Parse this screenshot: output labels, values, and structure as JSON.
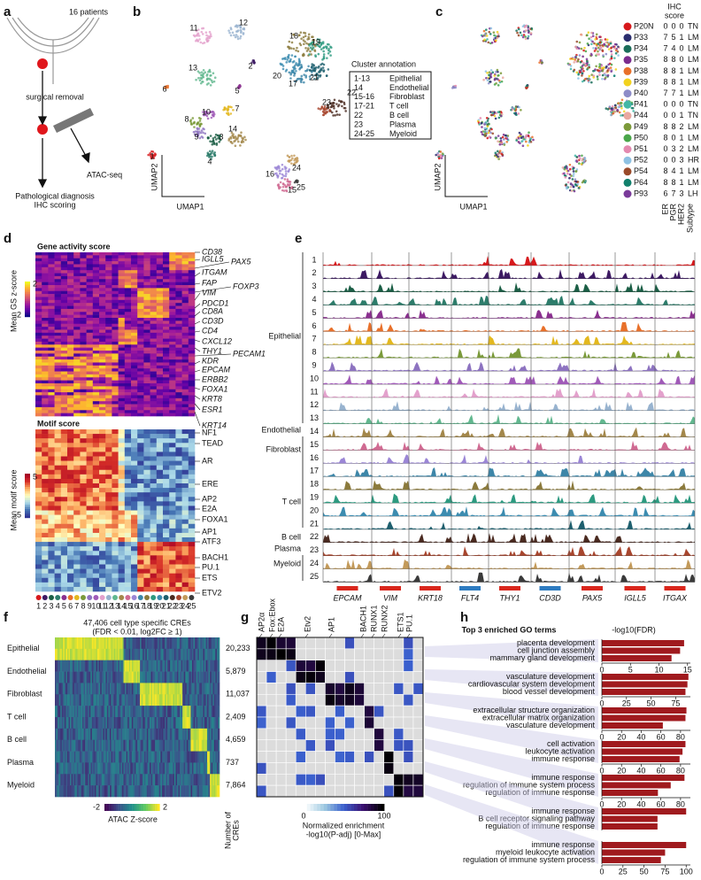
{
  "panels": {
    "a": {
      "label": "a",
      "patients": "16 patients",
      "surgery": "surgical removal",
      "assay": "ATAC-seq",
      "outcome": [
        "Pathological diagnosis",
        "IHC scoring"
      ]
    },
    "b": {
      "label": "b",
      "x_axis": "UMAP1",
      "y_axis": "UMAP2",
      "clusters": [
        1,
        2,
        3,
        4,
        5,
        6,
        7,
        8,
        9,
        10,
        11,
        12,
        13,
        14,
        15,
        16,
        17,
        18,
        19,
        20,
        21,
        22,
        23,
        24,
        25
      ],
      "cluster_colors": [
        "#d7191c",
        "#3d1a63",
        "#1b5e45",
        "#2c7c6a",
        "#8a2f8f",
        "#e8702a",
        "#e3b81f",
        "#7a9a3a",
        "#8d73c0",
        "#a05bb8",
        "#e3a1cc",
        "#98b3cf",
        "#62b88f",
        "#a3874a",
        "#d06a92",
        "#9b86d6",
        "#3d86a8",
        "#8b7a3c",
        "#2d9a80",
        "#3c8cb0",
        "#1e5f6e",
        "#4a2a20",
        "#a8462e",
        "#c39a5a",
        "#3a3a3a"
      ],
      "annotation": {
        "title": "Cluster annotation",
        "rows": [
          [
            "1-13",
            "Epithelial"
          ],
          [
            "14",
            "Endothelial"
          ],
          [
            "15-16",
            "Fibroblast"
          ],
          [
            "17-21",
            "T cell"
          ],
          [
            "22",
            "B cell"
          ],
          [
            "23",
            "Plasma"
          ],
          [
            "24-25",
            "Myeloid"
          ]
        ]
      }
    },
    "c": {
      "label": "c",
      "x_axis": "UMAP1",
      "y_axis": "UMAP2",
      "ihc_title": [
        "IHC",
        "score"
      ],
      "columns": [
        "ER",
        "PGR",
        "HER2",
        "Subtype"
      ],
      "patients": [
        {
          "name": "P20N",
          "color": "#d7191c",
          "er": 0,
          "pgr": 0,
          "her2": 0,
          "subtype": "TN"
        },
        {
          "name": "P33",
          "color": "#2b2d6e",
          "er": 7,
          "pgr": 5,
          "her2": 1,
          "subtype": "LM"
        },
        {
          "name": "P34",
          "color": "#1b6e5a",
          "er": 7,
          "pgr": 4,
          "her2": 0,
          "subtype": "LM"
        },
        {
          "name": "P35",
          "color": "#7b2d8e",
          "er": 8,
          "pgr": 8,
          "her2": 0,
          "subtype": "LM"
        },
        {
          "name": "P38",
          "color": "#e8702a",
          "er": 8,
          "pgr": 8,
          "her2": 1,
          "subtype": "LM"
        },
        {
          "name": "P39",
          "color": "#f2d21f",
          "er": 8,
          "pgr": 8,
          "her2": 1,
          "subtype": "LM"
        },
        {
          "name": "P40",
          "color": "#8d8cc8",
          "er": 7,
          "pgr": 7,
          "her2": 1,
          "subtype": "LM"
        },
        {
          "name": "P41",
          "color": "#43b7a6",
          "er": 0,
          "pgr": 0,
          "her2": 0,
          "subtype": "TN"
        },
        {
          "name": "P44",
          "color": "#e9a8a0",
          "er": 0,
          "pgr": 0,
          "her2": 1,
          "subtype": "TN"
        },
        {
          "name": "P49",
          "color": "#7c9a3a",
          "er": 8,
          "pgr": 8,
          "her2": 2,
          "subtype": "LM"
        },
        {
          "name": "P50",
          "color": "#4aa64a",
          "er": 8,
          "pgr": 0,
          "her2": 1,
          "subtype": "LM"
        },
        {
          "name": "P51",
          "color": "#e48ab0",
          "er": 0,
          "pgr": 3,
          "her2": 2,
          "subtype": "LM"
        },
        {
          "name": "P52",
          "color": "#8fc2e3",
          "er": 0,
          "pgr": 0,
          "her2": 3,
          "subtype": "HR"
        },
        {
          "name": "P54",
          "color": "#9a4a2a",
          "er": 8,
          "pgr": 4,
          "her2": 1,
          "subtype": "LM"
        },
        {
          "name": "P64",
          "color": "#12806c",
          "er": 8,
          "pgr": 8,
          "her2": 1,
          "subtype": "LM"
        },
        {
          "name": "P93",
          "color": "#7a3a9a",
          "er": 6,
          "pgr": 7,
          "her2": 3,
          "subtype": "LH"
        }
      ]
    },
    "d": {
      "label": "d",
      "gene_title": "Gene activity score",
      "genes": [
        "CD38",
        "IGLL5",
        "PAX5",
        "ITGAM",
        "FAP",
        "FOXP3",
        "VIM",
        "PDCD1",
        "CD8A",
        "CD3D",
        "CD4",
        "CXCL12",
        "THY1",
        "PECAM1",
        "KDR",
        "EPCAM",
        "ERBB2",
        "FOXA1",
        "KRT8",
        "ESR1",
        "KRT14"
      ],
      "gs_scale": {
        "title": "Mean GS z-score",
        "ticks": [
          2,
          -2
        ]
      },
      "motif_title": "Motif score",
      "motifs": [
        "NF1",
        "TEAD",
        "AR",
        "ERE",
        "AP2",
        "E2A",
        "FOXA1",
        "AP1",
        "ATF3",
        "BACH1",
        "PU.1",
        "ETS",
        "ETV2"
      ],
      "motif_scale": {
        "title": "Mean motif score",
        "ticks": [
          5,
          -5
        ]
      }
    },
    "e": {
      "label": "e",
      "groups": [
        "Epithelial",
        "Endothelial",
        "Fibroblast",
        "T cell",
        "B cell",
        "Plasma",
        "Myeloid"
      ],
      "genes": [
        "EPCAM",
        "VIM",
        "KRT18",
        "FLT4",
        "THY1",
        "CD3D",
        "PAX5",
        "IGLL5",
        "ITGAX"
      ]
    },
    "f": {
      "label": "f",
      "title": [
        "47,406 cell type specific CREs",
        "(FDR < 0.01, log2FC ≥ 1)"
      ],
      "rows": [
        "Epithelial",
        "Endothelial",
        "Fibroblast",
        "T cell",
        "B cell",
        "Plasma",
        "Myeloid"
      ],
      "counts": [
        "20,233",
        "5,879",
        "11,037",
        "2,409",
        "4,659",
        "737",
        "7,864"
      ],
      "count_title": [
        "Number of",
        "CREs"
      ],
      "scale_title": "ATAC Z-score",
      "scale_ticks": [
        -2,
        2
      ]
    },
    "g": {
      "label": "g",
      "tfs": [
        "AP2α",
        "Fox:Ebox",
        "E2A",
        "Etv2",
        "AP1",
        "BACH1",
        "RUNX1",
        "RUNX2",
        "ETS1",
        "PU.1"
      ],
      "scale_title": [
        "Normalized enrichment",
        "-log10(P-adj) [0-Max]"
      ],
      "scale_ticks": [
        0,
        100
      ]
    },
    "h": {
      "label": "h",
      "title": "Top 3 enriched GO terms",
      "axis_title": "-log10(FDR)",
      "color": "#a01a1e",
      "groups": [
        {
          "terms": [
            "placenta development",
            "cell junction assembly",
            "mammary gland development"
          ],
          "values": [
            14.4,
            13.7,
            12.2
          ],
          "xlim": [
            0,
            15.5
          ],
          "xticks": [
            0,
            5,
            10,
            15
          ]
        },
        {
          "terms": [
            "vasculature development",
            "cardiovascular system development",
            "blood vessel development"
          ],
          "values": [
            88,
            87,
            85
          ],
          "xlim": [
            0,
            90
          ],
          "xticks": [
            0,
            25,
            50,
            75
          ]
        },
        {
          "terms": [
            "extracellular structure organization",
            "extracellular matrix organization",
            "vasculature development"
          ],
          "values": [
            86,
            85,
            62
          ],
          "xlim": [
            0,
            90
          ],
          "xticks": [
            0,
            20,
            40,
            60,
            80
          ]
        },
        {
          "terms": [
            "cell activation",
            "leukocyte activation",
            "immune response"
          ],
          "values": [
            85,
            82,
            79
          ],
          "xlim": [
            0,
            90
          ],
          "xticks": [
            0,
            20,
            40,
            60,
            80
          ]
        },
        {
          "terms": [
            "immune response",
            "regulation of immune system process",
            "regulation of immune response"
          ],
          "values": [
            84,
            70,
            57
          ],
          "xlim": [
            0,
            90
          ],
          "xticks": [
            0,
            20,
            40,
            60,
            80
          ]
        },
        {
          "terms": [
            "immune response",
            "B cell receptor signaling pathway",
            "regulation of immune response"
          ],
          "values": [
            100,
            66,
            66
          ],
          "xlim": [
            0,
            105
          ]
        },
        {
          "terms": [
            "immune response",
            "myeloid leukocyte activation",
            "regulation of immune system process"
          ],
          "values": [
            100,
            75,
            70
          ],
          "xlim": [
            0,
            105
          ],
          "xticks": [
            0,
            25,
            50,
            75,
            100
          ]
        }
      ]
    }
  }
}
